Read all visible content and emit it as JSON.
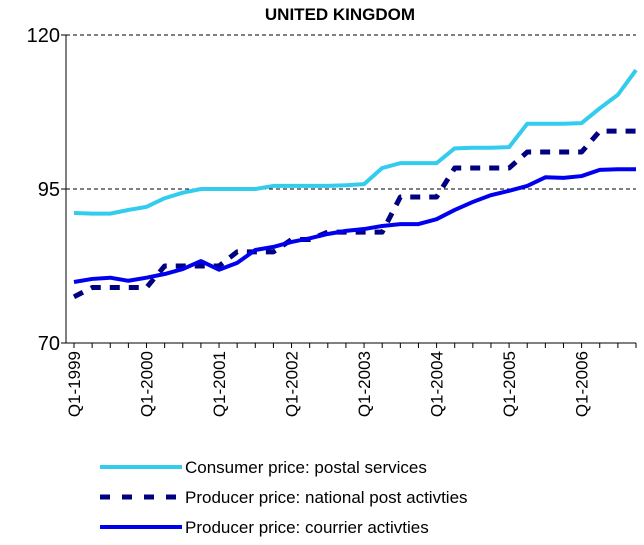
{
  "chart_data": {
    "type": "line",
    "title": "UNITED KINGDOM",
    "categories": [
      "Q1-1999",
      null,
      null,
      null,
      "Q1-2000",
      null,
      null,
      null,
      "Q1-2001",
      null,
      null,
      null,
      "Q1-2002",
      null,
      null,
      null,
      "Q1-2003",
      null,
      null,
      null,
      "Q1-2004",
      null,
      null,
      null,
      "Q1-2005",
      null,
      null,
      null,
      "Q1-2006",
      null,
      null,
      null
    ],
    "series": [
      {
        "name": "Consumer price: postal services",
        "color": "#33ccee",
        "dash": false,
        "values": [
          91.1,
          91.0,
          91.0,
          91.6,
          92.1,
          93.5,
          94.4,
          95.0,
          95.0,
          95.0,
          95.0,
          95.5,
          95.5,
          95.5,
          95.5,
          95.6,
          95.8,
          98.4,
          99.2,
          99.2,
          99.2,
          101.6,
          101.7,
          101.7,
          101.8,
          105.6,
          105.6,
          105.6,
          105.7,
          108.1,
          110.3,
          114.3
        ]
      },
      {
        "name": "Producer price: national post activties",
        "color": "#000080",
        "dash": true,
        "values": [
          77.5,
          79.0,
          79.0,
          79.0,
          79.0,
          82.5,
          82.5,
          82.5,
          82.5,
          84.8,
          84.8,
          84.8,
          86.8,
          86.8,
          88.0,
          88.0,
          88.0,
          88.0,
          93.7,
          93.7,
          93.7,
          98.4,
          98.4,
          98.4,
          98.4,
          101.0,
          101.0,
          101.0,
          101.0,
          104.4,
          104.4,
          104.4
        ]
      },
      {
        "name": "Producer price: courrier activties",
        "color": "#0000ee",
        "dash": false,
        "values": [
          79.9,
          80.4,
          80.6,
          80.1,
          80.6,
          81.2,
          82.0,
          83.3,
          81.9,
          83.0,
          85.1,
          85.6,
          86.4,
          87.0,
          87.7,
          88.2,
          88.5,
          89.0,
          89.3,
          89.3,
          90.1,
          91.6,
          92.9,
          94.0,
          94.7,
          95.5,
          96.9,
          96.8,
          97.1,
          98.1,
          98.2,
          98.2
        ]
      }
    ],
    "ylim": [
      70,
      120
    ],
    "yticks": [
      70,
      95,
      120
    ],
    "grid": true
  }
}
